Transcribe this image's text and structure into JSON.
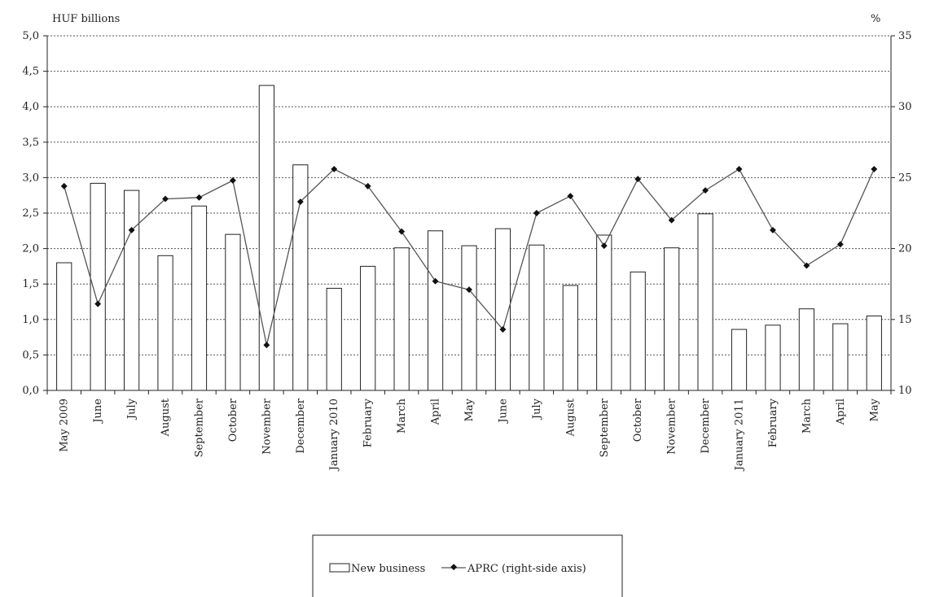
{
  "chart_data": {
    "type": "bar",
    "categories": [
      "May 2009",
      "June",
      "July",
      "August",
      "September",
      "October",
      "November",
      "December",
      "January 2010",
      "February",
      "March",
      "April",
      "May",
      "June",
      "July",
      "August",
      "September",
      "October",
      "November",
      "December",
      "January 2011",
      "February",
      "March",
      "April",
      "May"
    ],
    "series": [
      {
        "name": "New business",
        "type": "bar",
        "axis": "left",
        "values": [
          1.8,
          2.92,
          2.82,
          1.9,
          2.6,
          2.2,
          4.3,
          3.18,
          1.44,
          1.75,
          2.01,
          2.25,
          2.04,
          2.28,
          2.05,
          1.48,
          2.19,
          1.67,
          2.01,
          2.49,
          0.86,
          0.92,
          1.15,
          0.94,
          1.05
        ]
      },
      {
        "name": "APRC (right-side axis)",
        "type": "line",
        "axis": "right",
        "values": [
          24.4,
          16.1,
          21.3,
          23.5,
          23.6,
          24.8,
          13.2,
          23.3,
          25.6,
          24.4,
          21.2,
          17.7,
          17.1,
          14.3,
          22.5,
          23.7,
          20.2,
          24.9,
          22.0,
          24.1,
          25.6,
          21.3,
          18.8,
          20.3,
          25.6
        ]
      }
    ],
    "ylabel_left": "HUF billions",
    "ylabel_right": "%",
    "ylim_left": [
      0,
      5
    ],
    "ylim_right": [
      10,
      35
    ],
    "yticks_left": [
      "0,0",
      "0,5",
      "1,0",
      "1,5",
      "2,0",
      "2,5",
      "3,0",
      "3,5",
      "4,0",
      "4,5",
      "5,0"
    ],
    "yticks_right": [
      "10",
      "15",
      "20",
      "25",
      "30",
      "35"
    ],
    "grid": true,
    "legend_position": "bottom-center",
    "colors": {
      "bar_fill": "#ffffff",
      "bar_stroke": "#222222",
      "line": "#555555",
      "marker": "#111111",
      "grid": "#555555"
    }
  }
}
